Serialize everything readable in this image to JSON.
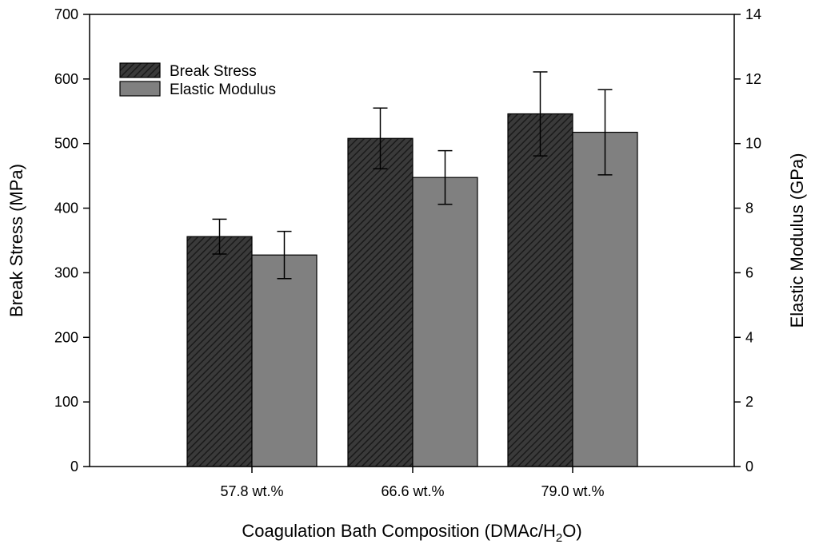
{
  "chart_data": {
    "type": "bar",
    "title": "",
    "categories": [
      "57.8 wt.%",
      "66.6 wt.%",
      "79.0 wt.%"
    ],
    "xlabel_main": "Coagulation Bath Composition (DMAc/H",
    "xlabel_sub": "2",
    "xlabel_tail": "O)",
    "ylabel_left": "Break Stress (MPa)",
    "ylabel_right": "Elastic Modulus (GPa)",
    "ylim_left": [
      0,
      700
    ],
    "ylim_right": [
      0,
      14
    ],
    "yticks_left": [
      0,
      100,
      200,
      300,
      400,
      500,
      600,
      700
    ],
    "yticks_right": [
      0,
      2,
      4,
      6,
      8,
      10,
      12,
      14
    ],
    "legend_position": "top-left",
    "series": [
      {
        "name": "Break Stress",
        "axis": "left",
        "pattern": "hatched",
        "color": "#404040",
        "values": [
          356,
          508,
          546
        ],
        "errors": [
          27,
          47,
          65
        ]
      },
      {
        "name": "Elastic Modulus",
        "axis": "right",
        "pattern": "solid",
        "color": "#808080",
        "values": [
          6.55,
          8.95,
          10.35
        ],
        "errors": [
          0.73,
          0.83,
          1.32
        ]
      }
    ]
  }
}
